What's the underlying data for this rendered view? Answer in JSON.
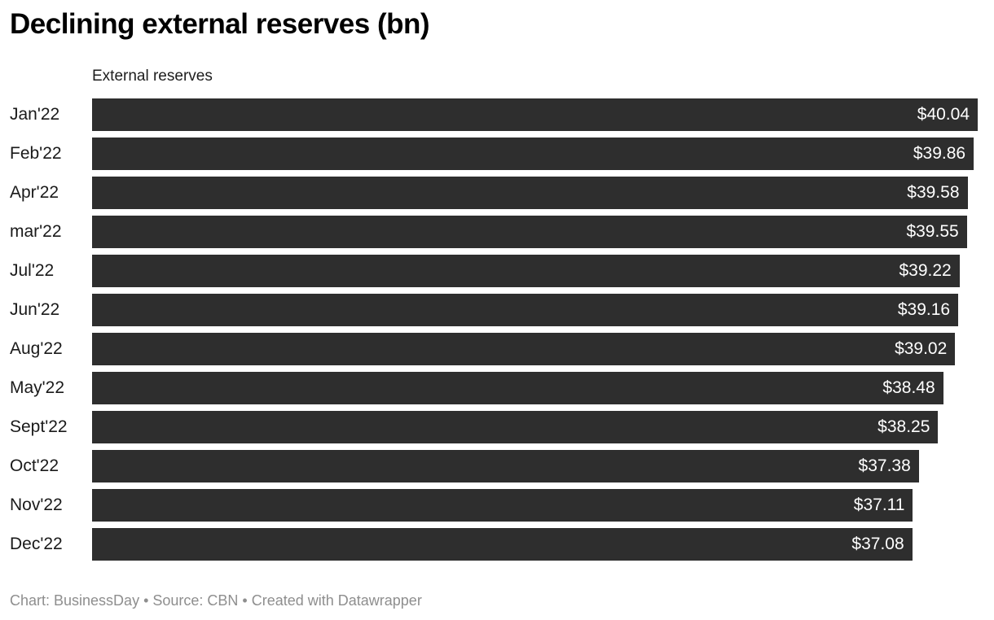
{
  "header": {
    "title": "Declining external reserves (bn)"
  },
  "legend": {
    "series_label": "External reserves"
  },
  "chart_data": {
    "type": "bar",
    "orientation": "horizontal",
    "title": "Declining external reserves (bn)",
    "series_label": "External reserves",
    "categories": [
      "Jan'22",
      "Feb'22",
      "Apr'22",
      "mar'22",
      "Jul'22",
      "Jun'22",
      "Aug'22",
      "May'22",
      "Sept'22",
      "Oct'22",
      "Nov'22",
      "Dec'22"
    ],
    "values": [
      40.04,
      39.86,
      39.58,
      39.55,
      39.22,
      39.16,
      39.02,
      38.48,
      38.25,
      37.38,
      37.11,
      37.08
    ],
    "value_labels": [
      "$40.04",
      "$39.86",
      "$39.58",
      "$39.55",
      "$39.22",
      "$39.16",
      "$39.02",
      "$38.48",
      "$38.25",
      "$37.38",
      "$37.11",
      "$37.08"
    ],
    "xlabel": "",
    "ylabel": "",
    "xlim": [
      0,
      40.04
    ],
    "grid": false,
    "legend_position": "top",
    "bar_color": "#2e2e2e",
    "value_label_color": "#ffffff",
    "value_labels_inside_bar": true
  },
  "footer": {
    "credit": "Chart: BusinessDay • Source: CBN • Created with Datawrapper"
  }
}
